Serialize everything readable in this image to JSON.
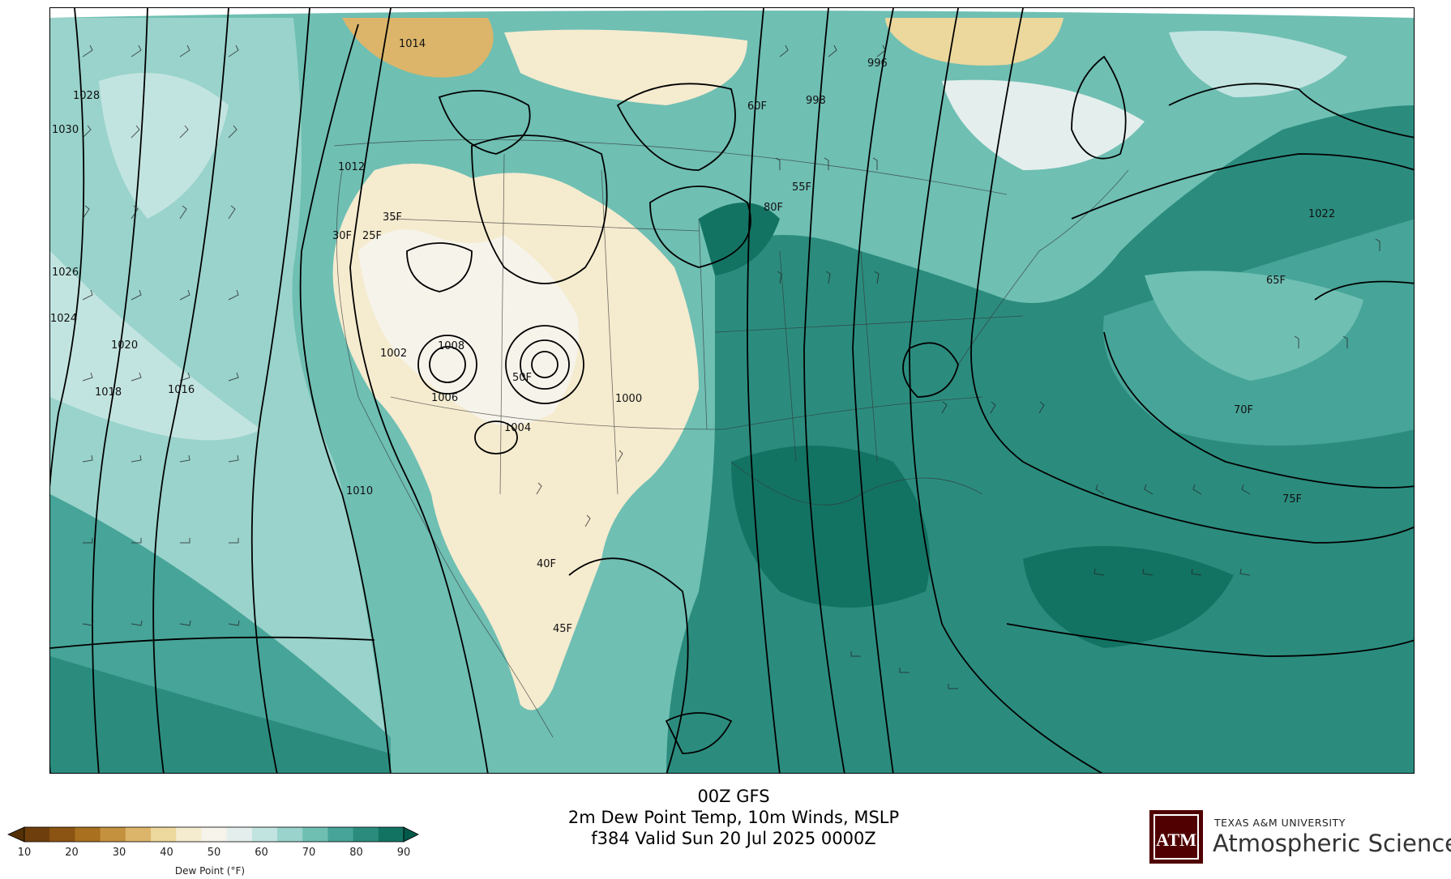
{
  "caption": {
    "line1": "00Z GFS",
    "line2": "2m Dew Point Temp, 10m Winds, MSLP",
    "line3": "f384 Valid Sun 20 Jul 2025 0000Z"
  },
  "colorbar": {
    "label": "Dew Point (°F)",
    "ticks": [
      "10",
      "20",
      "30",
      "40",
      "50",
      "60",
      "70",
      "80",
      "90"
    ],
    "colors": [
      "#543005",
      "#6e3f0c",
      "#8c5413",
      "#a8701f",
      "#c4913f",
      "#dcb56a",
      "#ecd79c",
      "#f5ebcf",
      "#f6f3ea",
      "#e4eeec",
      "#c2e4e0",
      "#99d3cb",
      "#6fbfb3",
      "#47a498",
      "#2b8c7e",
      "#137363",
      "#01594a"
    ]
  },
  "logo": {
    "university": "TEXAS A&M UNIVERSITY",
    "department": "Atmospheric Sciences",
    "mark": "ATM"
  },
  "map": {
    "isobar_labels": [
      "1028",
      "1030",
      "1026",
      "1024",
      "1020",
      "1018",
      "1016",
      "1014",
      "1012",
      "1010",
      "1008",
      "1006",
      "1004",
      "1002",
      "1000",
      "998",
      "996",
      "1022"
    ],
    "dewpoint_labels": [
      "25F",
      "30F",
      "35F",
      "40F",
      "45F",
      "50F",
      "55F",
      "60F",
      "65F",
      "70F",
      "75F",
      "80F"
    ]
  }
}
